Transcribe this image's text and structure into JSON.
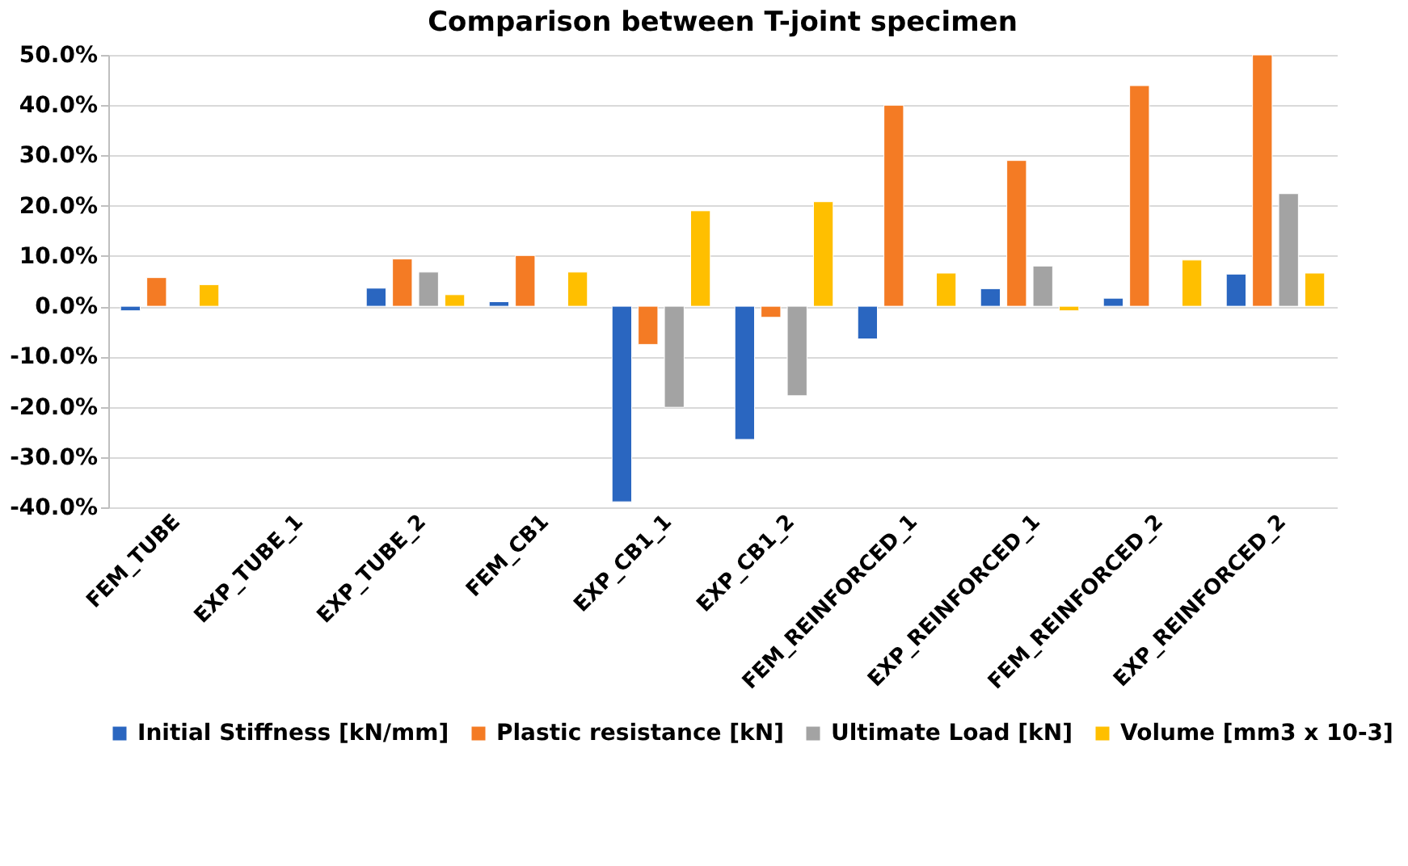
{
  "chart_data": {
    "type": "bar",
    "title": "Comparison between T-joint specimen",
    "categories": [
      "FEM_TUBE",
      "EXP_TUBE_1",
      "EXP_TUBE_2",
      "FEM_CB1",
      "EXP_CB1_1",
      "EXP_CB1_2",
      "FEM_REINFORCED_1",
      "EXP_REINFORCED_1",
      "FEM_REINFORCED_2",
      "EXP_REINFORCED_2"
    ],
    "series": [
      {
        "name": "Initial Stiffness [kN/mm]",
        "color": "#2a66c0",
        "values": [
          -0.9,
          null,
          3.6,
          0.9,
          -38.9,
          -26.5,
          -6.5,
          3.5,
          1.6,
          6.4
        ]
      },
      {
        "name": "Plastic resistance [kN]",
        "color": "#f47b24",
        "values": [
          5.7,
          null,
          9.4,
          10.1,
          -7.6,
          -2.2,
          40.0,
          29.0,
          43.9,
          50.0
        ]
      },
      {
        "name": "Ultimate Load [kN]",
        "color": "#a3a3a3",
        "values": [
          null,
          null,
          6.8,
          null,
          -20.1,
          -17.8,
          null,
          8.0,
          null,
          22.4
        ]
      },
      {
        "name": "Volume [mm3 x 10-3]",
        "color": "#ffbf00",
        "values": [
          4.3,
          null,
          2.3,
          6.8,
          19.0,
          20.8,
          6.6,
          -0.9,
          9.2,
          6.6
        ]
      }
    ],
    "ylim": [
      -40,
      50
    ],
    "yticks": [
      {
        "value": -40,
        "label": "-40.0%"
      },
      {
        "value": -30,
        "label": "-30.0%"
      },
      {
        "value": -20,
        "label": "-20.0%"
      },
      {
        "value": -10,
        "label": "-10.0%"
      },
      {
        "value": 0,
        "label": "0.0%"
      },
      {
        "value": 10,
        "label": "10.0%"
      },
      {
        "value": 20,
        "label": "20.0%"
      },
      {
        "value": 30,
        "label": "30.0%"
      },
      {
        "value": 40,
        "label": "40.0%"
      },
      {
        "value": 50,
        "label": "50.0%"
      }
    ],
    "grid": "y",
    "legend": "bottom"
  }
}
